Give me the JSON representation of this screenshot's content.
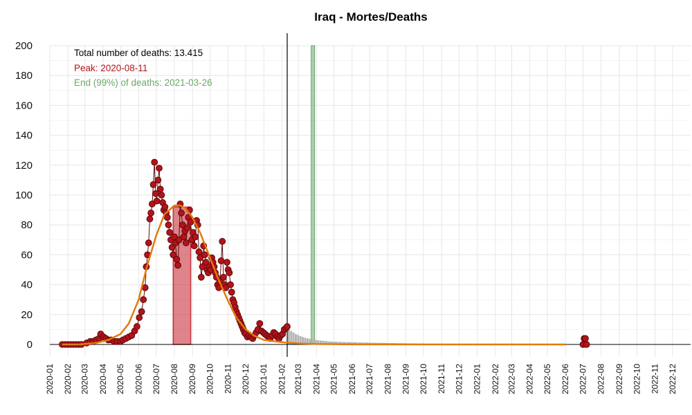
{
  "chart_data": {
    "type": "scatter",
    "title": "Iraq - Mortes/Deaths",
    "xlabel": "",
    "ylabel": "",
    "ylim": [
      0,
      200
    ],
    "xlim": [
      "2020-01-01",
      "2022-12-31"
    ],
    "y_ticks": [
      0,
      20,
      40,
      60,
      80,
      100,
      120,
      140,
      160,
      180,
      200
    ],
    "x_tick_labels": [
      "2020-01",
      "2020-02",
      "2020-03",
      "2020-04",
      "2020-05",
      "2020-06",
      "2020-07",
      "2020-08",
      "2020-09",
      "2020-10",
      "2020-11",
      "2020-12",
      "2021-01",
      "2021-02",
      "2021-03",
      "2021-04",
      "2021-05",
      "2021-06",
      "2021-07",
      "2021-08",
      "2021-09",
      "2021-10",
      "2021-11",
      "2021-12",
      "2022-01",
      "2022-02",
      "2022-03",
      "2022-04",
      "2022-05",
      "2022-06",
      "2022-07",
      "2022-08",
      "2022-09",
      "2022-10",
      "2022-11",
      "2022-12"
    ],
    "grid": true,
    "annotations": {
      "total": "Total number of deaths: 13.415",
      "peak": "Peak: 2020-08-11",
      "end": "End (99%) of deaths: 2021-03-26"
    },
    "vertical_line_date": "2021-02-10",
    "peak_band": {
      "from": "2020-07-30",
      "to": "2020-08-29",
      "top": 92
    },
    "end_band": {
      "from": "2021-03-23",
      "to": "2021-03-27"
    },
    "colors": {
      "points": "#b5121b",
      "points_edge": "#5a0a0a",
      "curve": "#e07b0c",
      "peak_band": "#c8323c",
      "end_band": "#8fbf8f",
      "forecast_bars": "#b3b3b3",
      "annot_total": "#000000",
      "annot_peak": "#b5121b",
      "annot_end": "#6aa86a"
    },
    "series": [
      {
        "name": "",
        "points": [
          [
            "2020-02-24",
            0
          ],
          [
            "2020-03-04",
            1
          ],
          [
            "2020-03-10",
            2
          ],
          [
            "2020-03-15",
            2
          ],
          [
            "2020-03-20",
            3
          ],
          [
            "2020-03-25",
            4
          ],
          [
            "2020-03-28",
            7
          ],
          [
            "2020-04-02",
            5
          ],
          [
            "2020-04-06",
            4
          ],
          [
            "2020-04-10",
            3
          ],
          [
            "2020-04-15",
            3
          ],
          [
            "2020-04-20",
            2
          ],
          [
            "2020-04-25",
            2
          ],
          [
            "2020-05-01",
            2
          ],
          [
            "2020-05-05",
            3
          ],
          [
            "2020-05-10",
            4
          ],
          [
            "2020-05-15",
            5
          ],
          [
            "2020-05-20",
            6
          ],
          [
            "2020-05-25",
            9
          ],
          [
            "2020-05-29",
            12
          ],
          [
            "2020-06-02",
            18
          ],
          [
            "2020-06-06",
            22
          ],
          [
            "2020-06-09",
            30
          ],
          [
            "2020-06-12",
            38
          ],
          [
            "2020-06-14",
            52
          ],
          [
            "2020-06-16",
            60
          ],
          [
            "2020-06-18",
            68
          ],
          [
            "2020-06-20",
            84
          ],
          [
            "2020-06-22",
            88
          ],
          [
            "2020-06-24",
            94
          ],
          [
            "2020-06-26",
            107
          ],
          [
            "2020-06-28",
            122
          ],
          [
            "2020-06-30",
            101
          ],
          [
            "2020-07-02",
            96
          ],
          [
            "2020-07-04",
            110
          ],
          [
            "2020-07-06",
            118
          ],
          [
            "2020-07-08",
            104
          ],
          [
            "2020-07-10",
            100
          ],
          [
            "2020-07-12",
            95
          ],
          [
            "2020-07-14",
            90
          ],
          [
            "2020-07-16",
            92
          ],
          [
            "2020-07-18",
            88
          ],
          [
            "2020-07-20",
            85
          ],
          [
            "2020-07-22",
            80
          ],
          [
            "2020-07-24",
            75
          ],
          [
            "2020-07-26",
            70
          ],
          [
            "2020-07-28",
            65
          ],
          [
            "2020-07-30",
            60
          ],
          [
            "2020-08-01",
            72
          ],
          [
            "2020-08-03",
            68
          ],
          [
            "2020-08-05",
            57
          ],
          [
            "2020-08-07",
            53
          ],
          [
            "2020-08-09",
            70
          ],
          [
            "2020-08-11",
            94
          ],
          [
            "2020-08-13",
            88
          ],
          [
            "2020-08-15",
            80
          ],
          [
            "2020-08-17",
            72
          ],
          [
            "2020-08-19",
            76
          ],
          [
            "2020-08-21",
            68
          ],
          [
            "2020-08-23",
            78
          ],
          [
            "2020-08-25",
            85
          ],
          [
            "2020-08-27",
            90
          ],
          [
            "2020-08-29",
            82
          ],
          [
            "2020-08-31",
            70
          ],
          [
            "2020-09-02",
            75
          ],
          [
            "2020-09-04",
            66
          ],
          [
            "2020-09-06",
            72
          ],
          [
            "2020-09-08",
            83
          ],
          [
            "2020-09-10",
            80
          ],
          [
            "2020-09-12",
            62
          ],
          [
            "2020-09-14",
            58
          ],
          [
            "2020-09-16",
            45
          ],
          [
            "2020-09-18",
            52
          ],
          [
            "2020-09-20",
            66
          ],
          [
            "2020-09-22",
            60
          ],
          [
            "2020-09-24",
            55
          ],
          [
            "2020-09-26",
            50
          ],
          [
            "2020-09-28",
            48
          ],
          [
            "2020-09-30",
            52
          ],
          [
            "2020-10-02",
            50
          ],
          [
            "2020-10-04",
            58
          ],
          [
            "2020-10-06",
            55
          ],
          [
            "2020-10-08",
            52
          ],
          [
            "2020-10-10",
            48
          ],
          [
            "2020-10-12",
            45
          ],
          [
            "2020-10-14",
            40
          ],
          [
            "2020-10-16",
            38
          ],
          [
            "2020-10-18",
            42
          ],
          [
            "2020-10-20",
            56
          ],
          [
            "2020-10-22",
            69
          ],
          [
            "2020-10-24",
            45
          ],
          [
            "2020-10-26",
            40
          ],
          [
            "2020-10-28",
            38
          ],
          [
            "2020-10-30",
            55
          ],
          [
            "2020-11-01",
            50
          ],
          [
            "2020-11-03",
            48
          ],
          [
            "2020-11-05",
            40
          ],
          [
            "2020-11-07",
            35
          ],
          [
            "2020-11-09",
            30
          ],
          [
            "2020-11-11",
            28
          ],
          [
            "2020-11-13",
            25
          ],
          [
            "2020-11-15",
            22
          ],
          [
            "2020-11-17",
            20
          ],
          [
            "2020-11-19",
            18
          ],
          [
            "2020-11-21",
            16
          ],
          [
            "2020-11-23",
            14
          ],
          [
            "2020-11-25",
            12
          ],
          [
            "2020-11-27",
            10
          ],
          [
            "2020-11-29",
            8
          ],
          [
            "2020-12-01",
            7
          ],
          [
            "2020-12-04",
            5
          ],
          [
            "2020-12-07",
            6
          ],
          [
            "2020-12-10",
            5
          ],
          [
            "2020-12-13",
            4
          ],
          [
            "2020-12-16",
            6
          ],
          [
            "2020-12-19",
            8
          ],
          [
            "2020-12-22",
            10
          ],
          [
            "2020-12-25",
            14
          ],
          [
            "2020-12-28",
            9
          ],
          [
            "2020-12-31",
            8
          ],
          [
            "2021-01-03",
            7
          ],
          [
            "2021-01-06",
            6
          ],
          [
            "2021-01-09",
            5
          ],
          [
            "2021-01-12",
            4
          ],
          [
            "2021-01-15",
            6
          ],
          [
            "2021-01-18",
            8
          ],
          [
            "2021-01-21",
            7
          ],
          [
            "2021-01-24",
            5
          ],
          [
            "2021-01-27",
            4
          ],
          [
            "2021-01-30",
            6
          ],
          [
            "2021-02-02",
            7
          ],
          [
            "2021-02-05",
            10
          ],
          [
            "2021-02-08",
            11
          ],
          [
            "2021-02-10",
            12
          ],
          [
            "2022-07-01",
            0
          ],
          [
            "2022-07-03",
            4
          ],
          [
            "2022-07-05",
            4
          ],
          [
            "2022-07-07",
            0
          ]
        ]
      },
      {
        "name": "",
        "curve": [
          [
            "2020-02-20",
            0
          ],
          [
            "2020-03-20",
            1
          ],
          [
            "2020-04-10",
            3
          ],
          [
            "2020-05-01",
            7
          ],
          [
            "2020-05-15",
            14
          ],
          [
            "2020-06-01",
            30
          ],
          [
            "2020-06-15",
            52
          ],
          [
            "2020-07-01",
            73
          ],
          [
            "2020-07-15",
            87
          ],
          [
            "2020-08-01",
            93
          ],
          [
            "2020-08-11",
            93
          ],
          [
            "2020-08-20",
            91
          ],
          [
            "2020-09-01",
            85
          ],
          [
            "2020-09-15",
            74
          ],
          [
            "2020-10-01",
            58
          ],
          [
            "2020-10-15",
            44
          ],
          [
            "2020-11-01",
            29
          ],
          [
            "2020-11-15",
            18
          ],
          [
            "2020-12-01",
            10
          ],
          [
            "2020-12-15",
            6
          ],
          [
            "2021-01-01",
            3
          ],
          [
            "2021-02-01",
            1.5
          ],
          [
            "2021-03-01",
            0.7
          ],
          [
            "2021-04-01",
            0.3
          ],
          [
            "2021-06-01",
            0.05
          ],
          [
            "2022-06-01",
            0
          ]
        ]
      },
      {
        "name": "",
        "forecast_bars": [
          [
            "2021-02-11",
            10
          ],
          [
            "2021-02-15",
            9
          ],
          [
            "2021-02-19",
            8
          ],
          [
            "2021-02-23",
            7
          ],
          [
            "2021-02-27",
            6.3
          ],
          [
            "2021-03-03",
            5.6
          ],
          [
            "2021-03-07",
            5
          ],
          [
            "2021-03-11",
            4.5
          ],
          [
            "2021-03-15",
            4.1
          ],
          [
            "2021-03-19",
            3.7
          ],
          [
            "2021-03-23",
            3.4
          ],
          [
            "2021-03-27",
            3.1
          ],
          [
            "2021-04-01",
            2.8
          ],
          [
            "2021-04-06",
            2.6
          ],
          [
            "2021-04-11",
            2.4
          ],
          [
            "2021-04-16",
            2.2
          ],
          [
            "2021-04-21",
            2.0
          ],
          [
            "2021-04-26",
            1.9
          ],
          [
            "2021-05-01",
            1.8
          ],
          [
            "2021-05-08",
            1.7
          ],
          [
            "2021-05-15",
            1.6
          ],
          [
            "2021-05-22",
            1.5
          ],
          [
            "2021-06-01",
            1.4
          ],
          [
            "2021-06-10",
            1.3
          ],
          [
            "2021-06-20",
            1.2
          ],
          [
            "2021-07-01",
            1.1
          ],
          [
            "2021-07-15",
            1.0
          ],
          [
            "2021-08-01",
            0.9
          ],
          [
            "2021-08-15",
            0.8
          ],
          [
            "2021-09-01",
            0.7
          ],
          [
            "2021-09-15",
            0.6
          ],
          [
            "2021-10-01",
            0.5
          ],
          [
            "2021-10-15",
            0.5
          ],
          [
            "2021-11-01",
            0.4
          ],
          [
            "2021-11-15",
            0.4
          ],
          [
            "2021-12-01",
            0.3
          ],
          [
            "2021-12-15",
            0.3
          ]
        ]
      }
    ]
  }
}
